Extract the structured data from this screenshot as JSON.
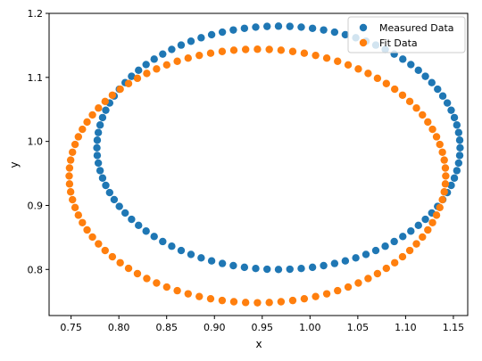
{
  "chart_data": {
    "type": "scatter",
    "title": "",
    "xlabel": "x",
    "ylabel": "y",
    "xlim": [
      0.727,
      1.165
    ],
    "ylim": [
      0.728,
      1.2
    ],
    "xticks": [
      0.75,
      0.8,
      0.85,
      0.9,
      0.95,
      1.0,
      1.05,
      1.1,
      1.15
    ],
    "xtick_labels": [
      "0.75",
      "0.80",
      "0.85",
      "0.90",
      "0.95",
      "1.00",
      "1.05",
      "1.10",
      "1.15"
    ],
    "yticks": [
      0.8,
      0.9,
      1.0,
      1.1,
      1.2
    ],
    "ytick_labels": [
      "0.8",
      "0.9",
      "1.0",
      "1.1",
      "1.2"
    ],
    "grid": false,
    "legend_position": "top-right",
    "series": [
      {
        "name": "Measured Data",
        "color": "#1f77b4",
        "shape": "ellipse",
        "center": [
          0.967,
          0.99
        ],
        "semi_axes": [
          0.19,
          0.19
        ],
        "rotation_deg": 0,
        "n_points": 100
      },
      {
        "name": "Fit Data",
        "color": "#ff7f0e",
        "shape": "ellipse",
        "center": [
          0.945,
          0.946
        ],
        "semi_axes": [
          0.197,
          0.198
        ],
        "rotation_deg": 0,
        "n_points": 100
      }
    ]
  }
}
